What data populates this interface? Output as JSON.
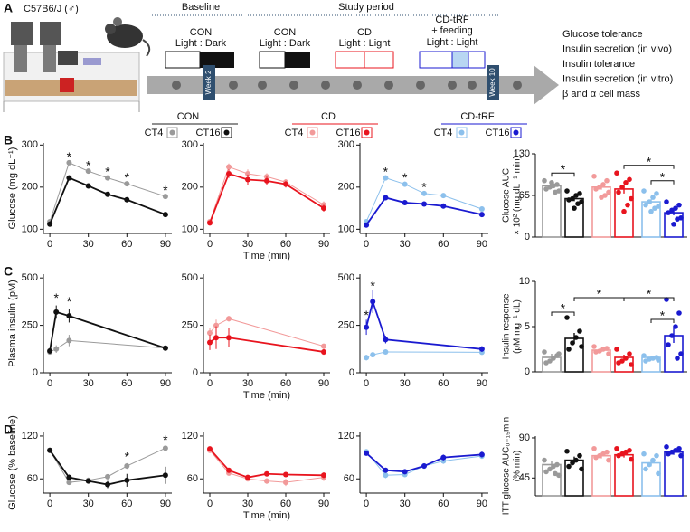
{
  "figure": {
    "panel": "A",
    "strain": "C57B6/J (♂)",
    "baseline": "Baseline",
    "study": "Study period",
    "con": "CON",
    "con_light": "Light : Dark",
    "con2": "CON",
    "con2_light": "Light : Dark",
    "cd": "CD",
    "cd_light": "Light : Light",
    "tr": "CD-tRF",
    "tr_feed": "+ feeding",
    "tr_light": "Light : Light",
    "week2": "Week 2",
    "week10": "Week 10",
    "outcomes": [
      {
        "text": "Glucose tolerance",
        "color": "#e8141e"
      },
      {
        "text": "Insulin secretion (in vivo)",
        "color": "#e8141e"
      },
      {
        "text": "Insulin tolerance",
        "color": "#e8141e"
      },
      {
        "text": "Insulin secretion (in vitro)",
        "color": "#111111"
      },
      {
        "text": "β and α cell mass",
        "color": "#111111"
      }
    ]
  },
  "legend": [
    {
      "group": "CON",
      "color": "#222222",
      "items": [
        {
          "name": "CT4",
          "color": "#9a9a9a"
        },
        {
          "name": "CT16",
          "color": "#111111"
        }
      ]
    },
    {
      "group": "CD",
      "color": "#e8141e",
      "items": [
        {
          "name": "CT4",
          "color": "#f29a9a"
        },
        {
          "name": "CT16",
          "color": "#e8141e"
        }
      ]
    },
    {
      "group": "CD-tRF",
      "color": "#1a1ad0",
      "items": [
        {
          "name": "CT4",
          "color": "#8cc0ec"
        },
        {
          "name": "CT16",
          "color": "#1a1ad0"
        }
      ]
    }
  ],
  "chart_data": [
    {
      "type": "line",
      "panel": "B",
      "ylabel": "Glucose (mg dL⁻¹)",
      "x": [
        0,
        15,
        30,
        45,
        60,
        90
      ],
      "xlim": [
        -5,
        95
      ],
      "xticks": [
        0,
        30,
        60,
        90
      ],
      "ylim": [
        90,
        305
      ],
      "yticks": [
        100,
        200,
        300
      ],
      "series": [
        {
          "color": "#9a9a9a",
          "values": [
            118,
            258,
            238,
            222,
            208,
            178
          ],
          "errors": [
            4,
            5,
            5,
            5,
            5,
            5
          ]
        },
        {
          "color": "#111111",
          "values": [
            112,
            222,
            203,
            183,
            170,
            135
          ],
          "errors": [
            4,
            6,
            5,
            4,
            4,
            4
          ]
        }
      ],
      "stars": [
        {
          "x": 15,
          "y": 270,
          "text": "*"
        },
        {
          "x": 30,
          "y": 250,
          "text": "*"
        },
        {
          "x": 45,
          "y": 234,
          "text": "*"
        },
        {
          "x": 60,
          "y": 220,
          "text": "*"
        },
        {
          "x": 90,
          "y": 190,
          "text": "*"
        }
      ]
    },
    {
      "type": "line",
      "x": [
        0,
        15,
        30,
        45,
        60,
        90
      ],
      "xlim": [
        -5,
        95
      ],
      "xticks": [
        0,
        30,
        60,
        90
      ],
      "ylim": [
        90,
        305
      ],
      "yticks": [
        100,
        200,
        300
      ],
      "xlabel": "Time (min)",
      "series": [
        {
          "color": "#f29a9a",
          "values": [
            118,
            248,
            232,
            225,
            212,
            158
          ],
          "errors": [
            4,
            8,
            10,
            8,
            7,
            8
          ]
        },
        {
          "color": "#e8141e",
          "values": [
            115,
            232,
            218,
            215,
            207,
            150
          ],
          "errors": [
            4,
            10,
            12,
            10,
            8,
            8
          ]
        }
      ],
      "stars": []
    },
    {
      "type": "line",
      "x": [
        0,
        15,
        30,
        45,
        60,
        90
      ],
      "xlim": [
        -5,
        95
      ],
      "xticks": [
        0,
        30,
        60,
        90
      ],
      "ylim": [
        90,
        305
      ],
      "yticks": [
        100,
        200,
        300
      ],
      "series": [
        {
          "color": "#8cc0ec",
          "values": [
            118,
            222,
            207,
            185,
            180,
            148
          ],
          "errors": [
            4,
            6,
            6,
            5,
            5,
            5
          ]
        },
        {
          "color": "#1a1ad0",
          "values": [
            110,
            175,
            163,
            160,
            155,
            135
          ],
          "errors": [
            4,
            5,
            4,
            4,
            4,
            4
          ]
        }
      ],
      "stars": [
        {
          "x": 15,
          "y": 235,
          "text": "*"
        },
        {
          "x": 30,
          "y": 220,
          "text": "*"
        },
        {
          "x": 45,
          "y": 198,
          "text": "*"
        }
      ]
    },
    {
      "type": "bar",
      "ylabel": [
        "Glucose AUC",
        "× 10² (mg dL⁻¹ min)"
      ],
      "categories": [
        null,
        null,
        null,
        null,
        null,
        null
      ],
      "ylim": [
        0,
        130
      ],
      "yticks": [
        0,
        65,
        130
      ],
      "colors": [
        "#9a9a9a",
        "#111111",
        "#f29a9a",
        "#e8141e",
        "#8cc0ec",
        "#1a1ad0"
      ],
      "values": [
        80,
        60,
        78,
        75,
        55,
        38
      ],
      "errors": [
        4,
        4,
        4,
        7,
        4,
        4
      ],
      "points": [
        [
          88,
          82,
          80,
          78,
          75,
          72,
          70,
          85
        ],
        [
          72,
          68,
          65,
          60,
          58,
          55,
          52,
          45
        ],
        [
          95,
          88,
          82,
          78,
          75,
          70,
          65,
          62
        ],
        [
          100,
          90,
          85,
          78,
          70,
          60,
          50,
          40
        ],
        [
          72,
          68,
          62,
          55,
          50,
          48,
          45,
          40
        ],
        [
          55,
          50,
          45,
          42,
          38,
          30,
          28,
          20
        ]
      ],
      "brackets": [
        {
          "from": 0,
          "to": 1,
          "y": 100,
          "text": "*"
        },
        {
          "from": 3,
          "to": 5,
          "y": 112,
          "text": "*"
        },
        {
          "from": 4,
          "to": 5,
          "y": 88,
          "text": "*"
        }
      ]
    },
    {
      "type": "line",
      "panel": "C",
      "ylabel": "Plasma insulin (pM)",
      "x": [
        0,
        5,
        15,
        90
      ],
      "xlim": [
        -5,
        95
      ],
      "xticks": [
        0,
        30,
        60,
        90
      ],
      "ylim": [
        0,
        520
      ],
      "yticks": [
        0,
        250,
        500
      ],
      "series": [
        {
          "color": "#9a9a9a",
          "values": [
            110,
            125,
            170,
            130
          ],
          "errors": [
            15,
            20,
            30,
            10
          ]
        },
        {
          "color": "#111111",
          "values": [
            115,
            320,
            300,
            130
          ],
          "errors": [
            15,
            35,
            35,
            10
          ]
        }
      ],
      "stars": [
        {
          "x": 5,
          "y": 390,
          "text": "*"
        },
        {
          "x": 15,
          "y": 370,
          "text": "*"
        }
      ]
    },
    {
      "type": "line",
      "x": [
        0,
        5,
        15,
        90
      ],
      "xlim": [
        -5,
        95
      ],
      "xticks": [
        0,
        30,
        60,
        90
      ],
      "ylim": [
        0,
        520
      ],
      "yticks": [
        0,
        250,
        500
      ],
      "xlabel": "Time (min)",
      "series": [
        {
          "color": "#f29a9a",
          "values": [
            210,
            250,
            285,
            140
          ],
          "errors": [
            25,
            30,
            15,
            10
          ]
        },
        {
          "color": "#e8141e",
          "values": [
            160,
            185,
            185,
            110
          ],
          "errors": [
            40,
            60,
            50,
            15
          ]
        }
      ],
      "stars": []
    },
    {
      "type": "line",
      "x": [
        0,
        5,
        15,
        90
      ],
      "xlim": [
        -5,
        95
      ],
      "xticks": [
        0,
        30,
        60,
        90
      ],
      "ylim": [
        0,
        520
      ],
      "yticks": [
        0,
        250,
        500
      ],
      "series": [
        {
          "color": "#8cc0ec",
          "values": [
            80,
            95,
            110,
            108
          ],
          "errors": [
            15,
            10,
            12,
            10
          ]
        },
        {
          "color": "#1a1ad0",
          "values": [
            240,
            375,
            175,
            125
          ],
          "errors": [
            40,
            60,
            20,
            15
          ]
        }
      ],
      "stars": [
        {
          "x": 0,
          "y": 300,
          "text": "*"
        },
        {
          "x": 5,
          "y": 455,
          "text": "*"
        }
      ]
    },
    {
      "type": "bar",
      "ylabel": [
        "Insulin response",
        "(pM mg⁻¹ dL)"
      ],
      "categories": [
        null,
        null,
        null,
        null,
        null,
        null
      ],
      "ylim": [
        0,
        10
      ],
      "yticks": [
        0,
        5,
        10
      ],
      "colors": [
        "#9a9a9a",
        "#111111",
        "#f29a9a",
        "#e8141e",
        "#8cc0ec",
        "#1a1ad0"
      ],
      "values": [
        1.6,
        3.7,
        2.4,
        1.6,
        1.6,
        4.0
      ],
      "errors": [
        0.4,
        0.6,
        0.2,
        0.3,
        0.15,
        0.8
      ],
      "points": [
        [
          2.2,
          1.8,
          1.5,
          1.2,
          1.0,
          2.0
        ],
        [
          6.0,
          4.5,
          3.8,
          3.2,
          2.5,
          2.8
        ],
        [
          2.8,
          2.6,
          2.5,
          2.3,
          2.2,
          2.0
        ],
        [
          2.5,
          2.0,
          1.5,
          1.2,
          1.0,
          0.8
        ],
        [
          1.8,
          1.6,
          1.5,
          1.4,
          1.2,
          1.3
        ],
        [
          8.0,
          6.5,
          5.0,
          4.0,
          3.0,
          2.0,
          1.5
        ]
      ],
      "brackets": [
        {
          "from": 0,
          "to": 1,
          "y": 6.6,
          "text": "*"
        },
        {
          "from": 1,
          "to": 3,
          "y": 8.2,
          "text": "*"
        },
        {
          "from": 3,
          "to": 5,
          "y": 8.2,
          "text": "*"
        },
        {
          "from": 4,
          "to": 5,
          "y": 5.8,
          "text": "*"
        }
      ]
    },
    {
      "type": "line",
      "panel": "D",
      "ylabel": "Glucose (% baseline)",
      "x": [
        0,
        15,
        30,
        45,
        60,
        90
      ],
      "xlim": [
        -5,
        95
      ],
      "xticks": [
        0,
        30,
        60,
        90
      ],
      "ylim": [
        40,
        125
      ],
      "yticks": [
        60,
        120
      ],
      "series": [
        {
          "color": "#9a9a9a",
          "values": [
            100,
            55,
            58,
            63,
            78,
            103
          ],
          "errors": [
            1,
            3,
            3,
            3,
            4,
            3
          ]
        },
        {
          "color": "#111111",
          "values": [
            100,
            62,
            57,
            52,
            58,
            65
          ],
          "errors": [
            1,
            4,
            3,
            5,
            9,
            12
          ]
        }
      ],
      "stars": [
        {
          "x": 60,
          "y": 90,
          "text": "*"
        },
        {
          "x": 90,
          "y": 113,
          "text": "*"
        }
      ]
    },
    {
      "type": "line",
      "x": [
        0,
        15,
        30,
        45,
        60,
        90
      ],
      "xlim": [
        -5,
        95
      ],
      "xticks": [
        0,
        30,
        60,
        90
      ],
      "ylim": [
        40,
        125
      ],
      "yticks": [
        60,
        120
      ],
      "xlabel": "Time (min)",
      "series": [
        {
          "color": "#f29a9a",
          "values": [
            100,
            68,
            60,
            57,
            55,
            62
          ],
          "errors": [
            1,
            3,
            3,
            4,
            5,
            5
          ]
        },
        {
          "color": "#e8141e",
          "values": [
            102,
            72,
            62,
            67,
            66,
            65
          ],
          "errors": [
            1,
            3,
            3,
            3,
            3,
            4
          ]
        }
      ],
      "stars": []
    },
    {
      "type": "line",
      "x": [
        0,
        15,
        30,
        45,
        60,
        90
      ],
      "xlim": [
        -5,
        95
      ],
      "xticks": [
        0,
        30,
        60,
        90
      ],
      "ylim": [
        40,
        125
      ],
      "yticks": [
        60,
        120
      ],
      "series": [
        {
          "color": "#8cc0ec",
          "values": [
            98,
            65,
            66,
            78,
            85,
            92
          ],
          "errors": [
            1,
            4,
            3,
            4,
            4,
            4
          ]
        },
        {
          "color": "#1a1ad0",
          "values": [
            96,
            72,
            70,
            78,
            90,
            94
          ],
          "errors": [
            1,
            3,
            3,
            3,
            4,
            4
          ]
        }
      ],
      "stars": []
    },
    {
      "type": "bar",
      "ylabel": [
        "ITT glucose AUC₀₋₁₅min",
        "(% min)"
      ],
      "categories": [
        null,
        null,
        null,
        null,
        null,
        null
      ],
      "ylim": [
        25,
        92
      ],
      "yticks": [
        45,
        90
      ],
      "colors": [
        "#9a9a9a",
        "#111111",
        "#f29a9a",
        "#e8141e",
        "#8cc0ec",
        "#1a1ad0"
      ],
      "values": [
        60,
        65,
        70,
        71,
        62,
        74
      ],
      "errors": [
        4,
        4,
        3,
        3,
        4,
        3
      ],
      "points": [
        [
          65,
          60,
          58,
          55,
          52,
          48,
          50
        ],
        [
          75,
          70,
          65,
          62,
          58,
          55
        ],
        [
          78,
          74,
          72,
          70,
          68,
          65
        ],
        [
          78,
          76,
          74,
          72,
          70,
          66
        ],
        [
          72,
          70,
          65,
          60,
          55,
          50
        ],
        [
          80,
          78,
          76,
          74,
          72,
          70
        ]
      ],
      "brackets": []
    }
  ]
}
